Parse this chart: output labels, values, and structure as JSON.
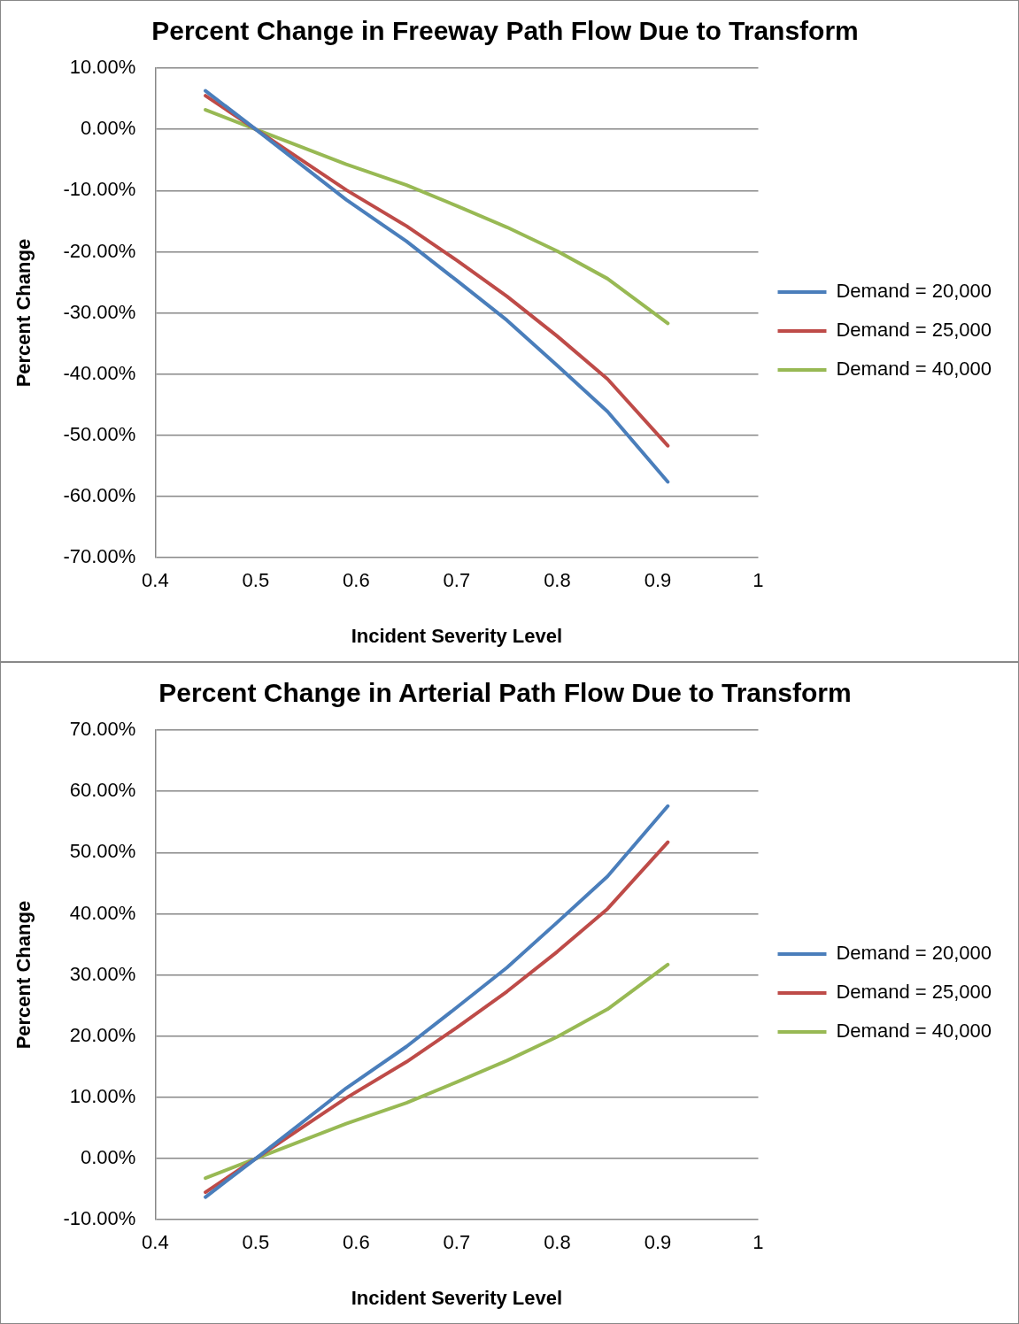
{
  "chart_data": [
    {
      "type": "line",
      "title": "Percent Change in Freeway Path Flow Due to Transform",
      "xlabel": "Incident Severity Level",
      "ylabel": "Percent Change",
      "x": [
        0.45,
        0.5,
        0.59,
        0.65,
        0.7,
        0.75,
        0.8,
        0.85,
        0.91
      ],
      "series": [
        {
          "name": "Demand = 20,000",
          "color": "#4a7ebb",
          "values": [
            6.3,
            0,
            -11.5,
            -18.3,
            -24.7,
            -31.2,
            -38.6,
            -46.1,
            -57.6
          ]
        },
        {
          "name": "Demand = 25,000",
          "color": "#be4b48",
          "values": [
            5.5,
            0,
            -9.9,
            -15.8,
            -21.4,
            -27.3,
            -33.8,
            -40.8,
            -51.7
          ]
        },
        {
          "name": "Demand = 40,000",
          "color": "#98b954",
          "values": [
            3.2,
            0,
            -5.7,
            -9.1,
            -12.5,
            -16.0,
            -19.9,
            -24.4,
            -31.7
          ]
        }
      ],
      "xlim": [
        0.4,
        1
      ],
      "xticks": [
        0.4,
        0.5,
        0.6,
        0.7,
        0.8,
        0.9,
        1
      ],
      "ylim": [
        -70,
        10
      ],
      "yticks": [
        {
          "value": -70,
          "label": "-70.00%"
        },
        {
          "value": -60,
          "label": "-60.00%"
        },
        {
          "value": -50,
          "label": "-50.00%"
        },
        {
          "value": -40,
          "label": "-40.00%"
        },
        {
          "value": -30,
          "label": "-30.00%"
        },
        {
          "value": -20,
          "label": "-20.00%"
        },
        {
          "value": -10,
          "label": "-10.00%"
        },
        {
          "value": 0,
          "label": "0.00%"
        },
        {
          "value": 10,
          "label": "10.00%"
        }
      ],
      "grid": "y",
      "legend": "right",
      "marker": "none",
      "line_style": "solid"
    },
    {
      "type": "line",
      "title": "Percent Change in Arterial Path Flow Due to Transform",
      "xlabel": "Incident Severity Level",
      "ylabel": "Percent Change",
      "x": [
        0.45,
        0.5,
        0.59,
        0.65,
        0.7,
        0.75,
        0.8,
        0.85,
        0.91
      ],
      "series": [
        {
          "name": "Demand = 20,000",
          "color": "#4a7ebb",
          "values": [
            -6.3,
            0,
            11.5,
            18.3,
            24.7,
            31.2,
            38.6,
            46.1,
            57.6
          ]
        },
        {
          "name": "Demand = 25,000",
          "color": "#be4b48",
          "values": [
            -5.5,
            0,
            9.9,
            15.8,
            21.4,
            27.3,
            33.8,
            40.8,
            51.7
          ]
        },
        {
          "name": "Demand = 40,000",
          "color": "#98b954",
          "values": [
            -3.2,
            0,
            5.7,
            9.1,
            12.5,
            16.0,
            19.9,
            24.4,
            31.7
          ]
        }
      ],
      "xlim": [
        0.4,
        1
      ],
      "xticks": [
        0.4,
        0.5,
        0.6,
        0.7,
        0.8,
        0.9,
        1
      ],
      "ylim": [
        -10,
        70
      ],
      "yticks": [
        {
          "value": -10,
          "label": "-10.00%"
        },
        {
          "value": 0,
          "label": "0.00%"
        },
        {
          "value": 10,
          "label": "10.00%"
        },
        {
          "value": 20,
          "label": "20.00%"
        },
        {
          "value": 30,
          "label": "30.00%"
        },
        {
          "value": 40,
          "label": "40.00%"
        },
        {
          "value": 50,
          "label": "50.00%"
        },
        {
          "value": 60,
          "label": "60.00%"
        },
        {
          "value": 70,
          "label": "70.00%"
        }
      ],
      "grid": "y",
      "legend": "right",
      "marker": "none",
      "line_style": "solid"
    }
  ]
}
